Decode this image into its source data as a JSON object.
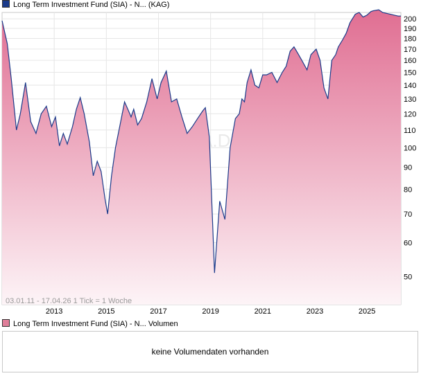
{
  "legend": {
    "main_label": "Long Term Investment Fund (SIA) - N... (KAG)",
    "volume_label": "Long Term Investment Fund (SIA) - N... Volumen"
  },
  "watermark": "ARIVA.DE",
  "footnote": "03.01.11 - 17.04.26   1 Tick = 1 Woche",
  "volume_message": "keine Volumendaten vorhanden",
  "chart_data": {
    "type": "area",
    "title": "Long Term Investment Fund (SIA) - N... (KAG)",
    "yscale": "log",
    "ylim": [
      43,
      207
    ],
    "xlim": [
      2011.0,
      2026.3
    ],
    "x_ticks": [
      2013,
      2015,
      2017,
      2019,
      2021,
      2023,
      2025
    ],
    "x_tick_labels": [
      "2013",
      "2015",
      "2017",
      "2019",
      "2021",
      "2023",
      "2025"
    ],
    "y_ticks": [
      50,
      60,
      70,
      80,
      90,
      100,
      110,
      120,
      130,
      140,
      150,
      160,
      170,
      180,
      190,
      200
    ],
    "y_tick_labels": [
      "50",
      "60",
      "70",
      "80",
      "90",
      "100",
      "110",
      "120",
      "130",
      "140",
      "150",
      "160",
      "170",
      "180",
      "190",
      "200"
    ],
    "x": [
      2011.0,
      2011.2,
      2011.35,
      2011.55,
      2011.7,
      2011.9,
      2012.1,
      2012.3,
      2012.5,
      2012.7,
      2012.9,
      2013.05,
      2013.2,
      2013.35,
      2013.5,
      2013.7,
      2013.85,
      2014.0,
      2014.15,
      2014.35,
      2014.5,
      2014.65,
      2014.8,
      2014.95,
      2015.05,
      2015.2,
      2015.35,
      2015.55,
      2015.7,
      2015.85,
      2015.95,
      2016.05,
      2016.2,
      2016.35,
      2016.55,
      2016.75,
      2016.95,
      2017.1,
      2017.3,
      2017.5,
      2017.7,
      2017.9,
      2018.1,
      2018.3,
      2018.5,
      2018.7,
      2018.8,
      2018.95,
      2019.15,
      2019.35,
      2019.55,
      2019.75,
      2019.95,
      2020.1,
      2020.2,
      2020.3,
      2020.4,
      2020.55,
      2020.7,
      2020.85,
      2021.0,
      2021.15,
      2021.35,
      2021.55,
      2021.75,
      2021.9,
      2022.05,
      2022.2,
      2022.35,
      2022.5,
      2022.7,
      2022.85,
      2023.05,
      2023.2,
      2023.35,
      2023.5,
      2023.65,
      2023.8,
      2023.9,
      2024.05,
      2024.2,
      2024.35,
      2024.55,
      2024.7,
      2024.85,
      2025.0,
      2025.15,
      2025.25,
      2025.45,
      2025.6,
      2025.75,
      2025.9,
      2026.05,
      2026.2,
      2026.3
    ],
    "values": [
      198,
      175,
      145,
      110,
      120,
      142,
      115,
      108,
      120,
      125,
      112,
      118,
      101,
      108,
      102,
      112,
      123,
      131,
      120,
      103,
      86,
      93,
      88,
      76,
      70,
      86,
      100,
      115,
      128,
      122,
      118,
      123,
      113,
      117,
      128,
      145,
      130,
      142,
      151,
      128,
      130,
      118,
      108,
      112,
      117,
      122,
      124,
      106,
      51,
      75,
      68,
      100,
      117,
      120,
      130,
      128,
      142,
      152,
      140,
      138,
      148,
      148,
      150,
      142,
      150,
      155,
      168,
      172,
      166,
      160,
      152,
      165,
      170,
      160,
      138,
      130,
      160,
      165,
      172,
      178,
      185,
      196,
      205,
      207,
      202,
      204,
      208,
      209,
      210,
      207,
      206,
      205,
      204,
      203,
      203
    ],
    "series": [
      {
        "name": "Long Term Investment Fund (SIA) - N... (KAG)",
        "color": "#1a3a8a",
        "fill_top": "#e06e92",
        "fill_bottom": "#fdf4f7"
      }
    ],
    "grid": true,
    "legend": "top-left"
  }
}
